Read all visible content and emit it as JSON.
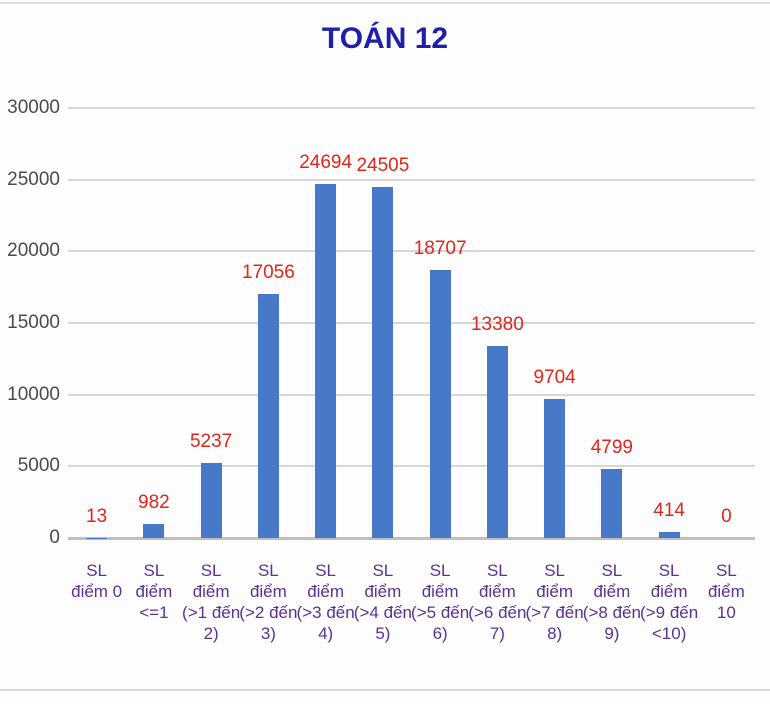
{
  "page": {
    "title": "TOÁN 12"
  },
  "colors": {
    "title": "#1f1fa8",
    "bar": "#4878c8",
    "value_label": "#e0261c",
    "category_label": "#5c3192",
    "axis_tick_label": "#4b4b4b",
    "gridline": "#d6d6d6",
    "zero_line": "#bfbfbf"
  },
  "chart_data": {
    "type": "bar",
    "title": "TOÁN 12",
    "xlabel": "",
    "ylabel": "",
    "ylim": [
      0,
      30000
    ],
    "ytick_step": 5000,
    "yticks": [
      0,
      5000,
      10000,
      15000,
      20000,
      25000,
      30000
    ],
    "grid": "horizontal",
    "legend": "none",
    "categories": [
      "SL điểm 0",
      "SL điểm <=1",
      "SL điểm (>1 đến 2)",
      "SL điểm (>2 đến 3)",
      "SL điểm (>3 đến 4)",
      "SL điểm (>4 đến 5)",
      "SL điểm (>5 đến 6)",
      "SL điểm (>6 đến 7)",
      "SL điểm (>7 đến 8)",
      "SL điểm (>8 đến 9)",
      "SL điểm (>9 đến <10)",
      "SL điểm 10"
    ],
    "category_lines": [
      [
        "SL",
        "điểm 0"
      ],
      [
        "SL",
        "điểm",
        "<=1"
      ],
      [
        "SL",
        "điểm",
        "(>1 đến",
        "2)"
      ],
      [
        "SL",
        "điểm",
        "(>2 đến",
        "3)"
      ],
      [
        "SL",
        "điểm",
        "(>3 đến",
        "4)"
      ],
      [
        "SL",
        "điểm",
        "(>4 đến",
        "5)"
      ],
      [
        "SL",
        "điểm",
        "(>5 đến",
        "6)"
      ],
      [
        "SL",
        "điểm",
        "(>6 đến",
        "7)"
      ],
      [
        "SL",
        "điểm",
        "(>7 đến",
        "8)"
      ],
      [
        "SL",
        "điểm",
        "(>8 đến",
        "9)"
      ],
      [
        "SL",
        "điểm",
        "(>9 đến",
        "<10)"
      ],
      [
        "SL",
        "điểm",
        "10"
      ]
    ],
    "values": [
      13,
      982,
      5237,
      17056,
      24694,
      24505,
      18707,
      13380,
      9704,
      4799,
      414,
      0
    ]
  }
}
